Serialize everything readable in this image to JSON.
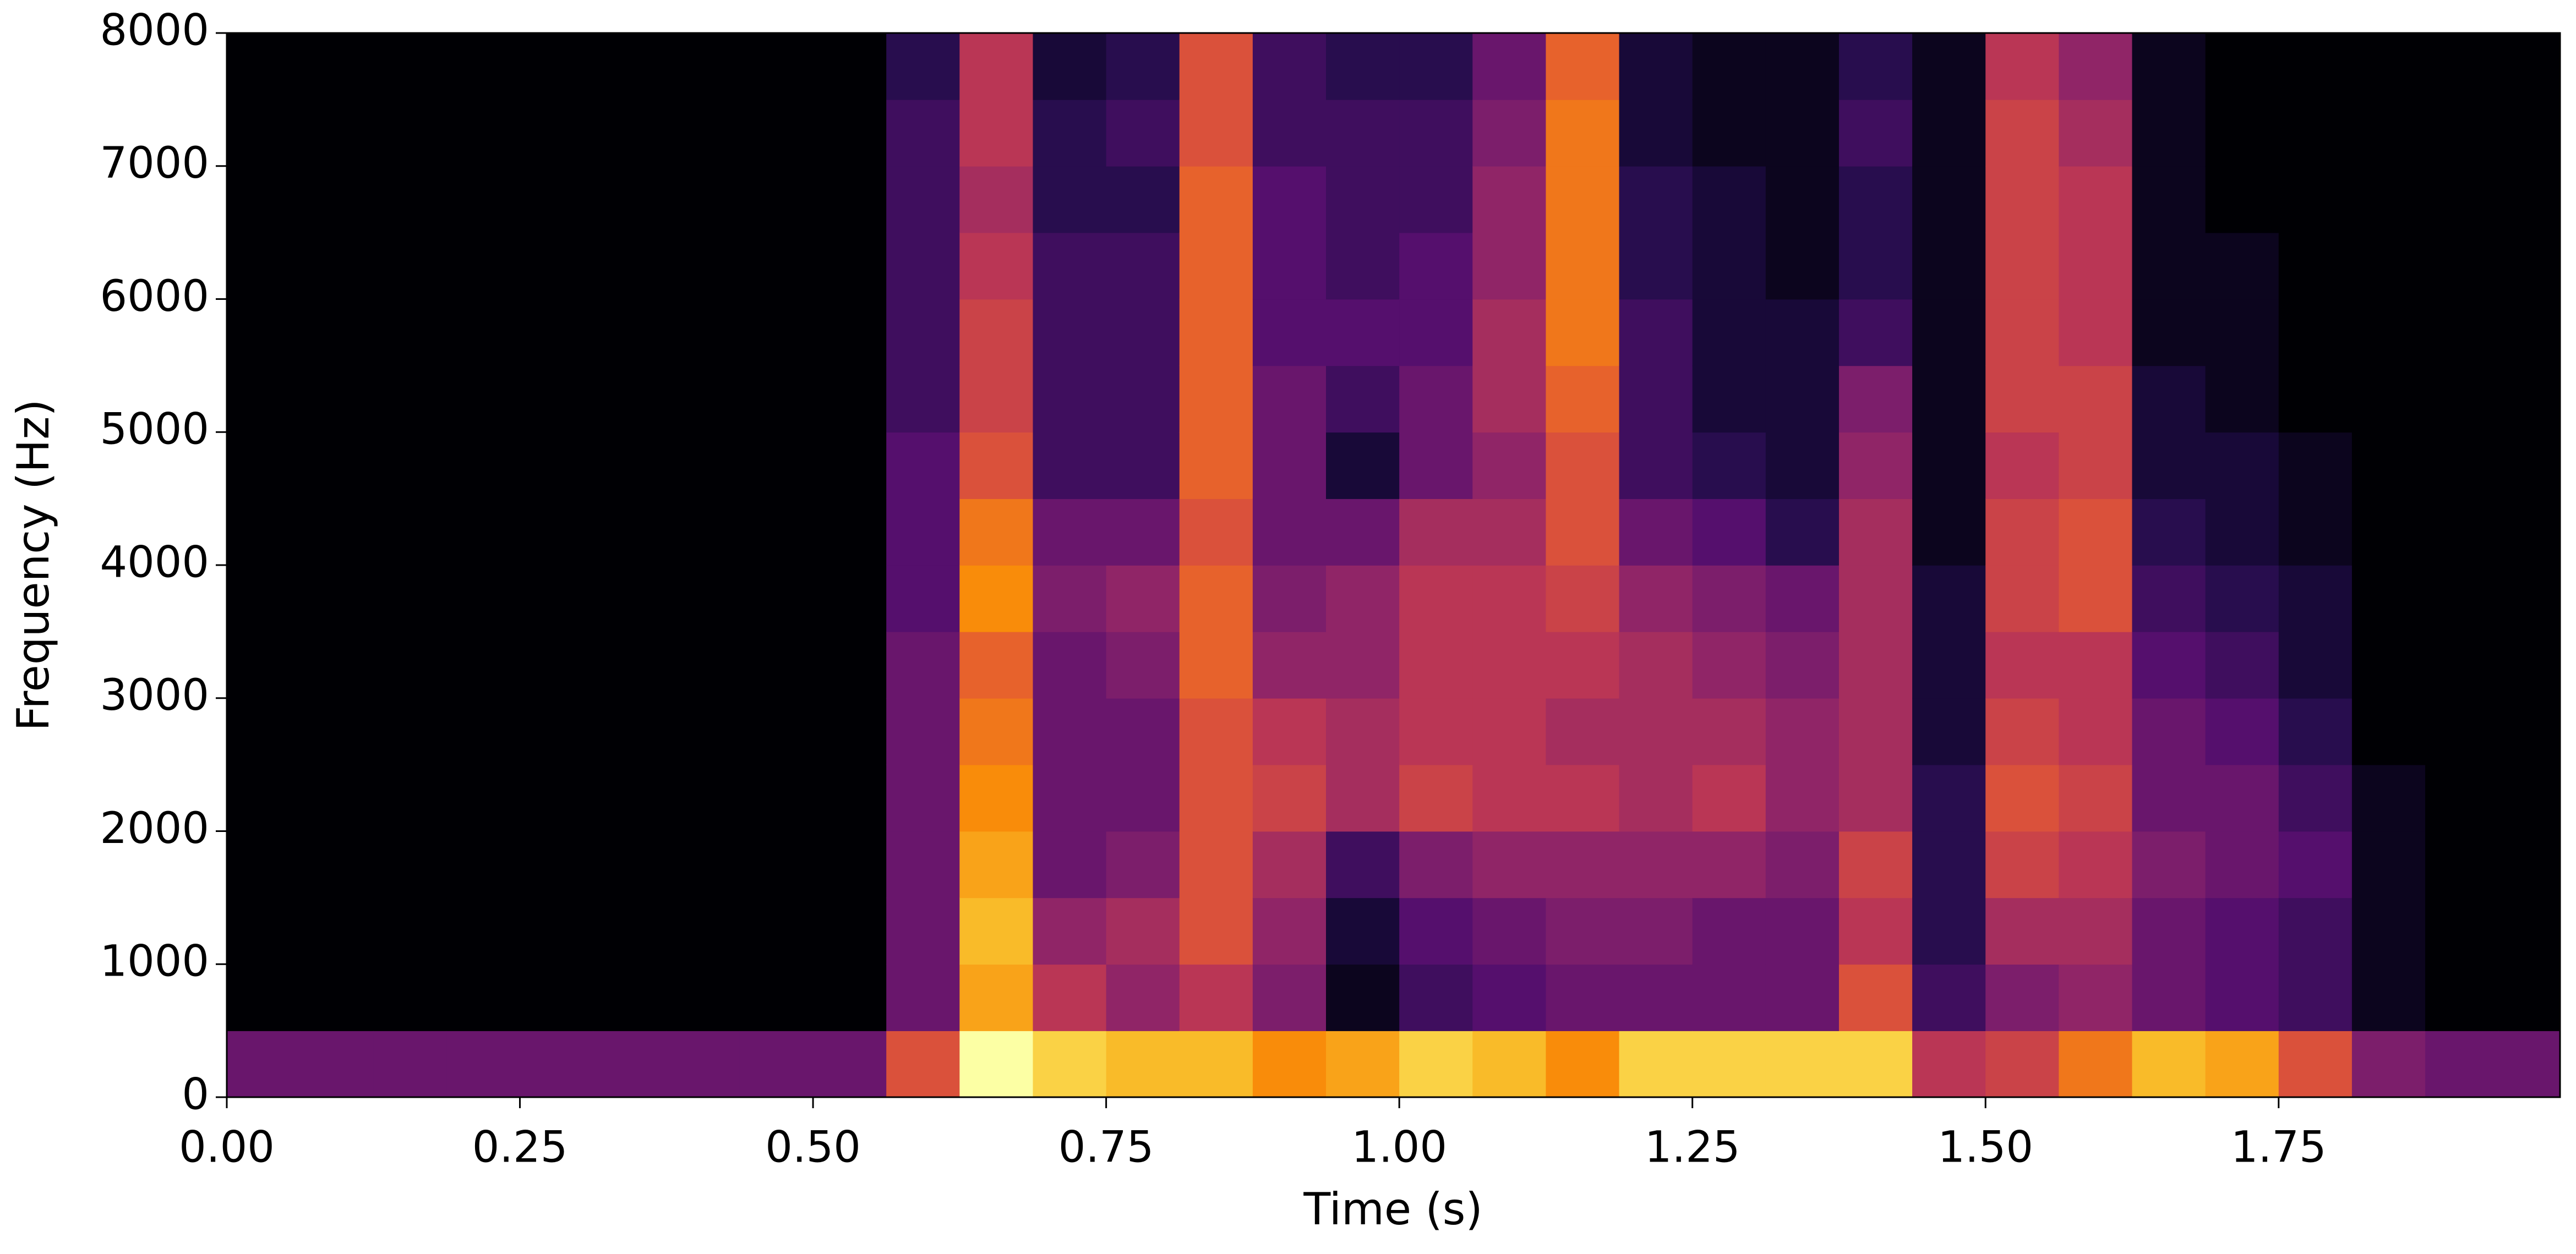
{
  "chart_data": {
    "type": "heatmap",
    "colormap": "inferno",
    "xlabel": "Time (s)",
    "ylabel": "Frequency (Hz)",
    "xlim": [
      0,
      1.99
    ],
    "ylim": [
      0,
      8000
    ],
    "xticks": [
      {
        "value": 0,
        "label": "0.00"
      },
      0.25,
      {
        "value": 0.5,
        "label": "0.50"
      },
      0.75,
      {
        "value": 1,
        "label": "1.00"
      },
      1.25,
      {
        "value": 1.5,
        "label": "1.50"
      },
      1.75
    ],
    "yticks": [
      0,
      1000,
      2000,
      3000,
      4000,
      5000,
      6000,
      7000,
      8000
    ],
    "x": [
      0,
      0.0625,
      0.125,
      0.1875,
      0.25,
      0.3125,
      0.375,
      0.4375,
      0.5,
      0.5625,
      0.625,
      0.6875,
      0.75,
      0.8125,
      0.875,
      0.9375,
      1.0,
      1.0625,
      1.125,
      1.1875,
      1.25,
      1.3125,
      1.375,
      1.4375,
      1.5,
      1.5625,
      1.625,
      1.6875,
      1.75,
      1.8125,
      1.875,
      1.9375,
      2.0
    ],
    "y": [
      0,
      500,
      1000,
      1500,
      2000,
      2500,
      3000,
      3500,
      4000,
      4500,
      5000,
      5500,
      6000,
      6500,
      7000,
      7500,
      8000
    ],
    "values": [
      [
        0.3,
        0,
        0,
        0,
        0,
        0,
        0,
        0,
        0,
        0,
        0,
        0,
        0,
        0,
        0,
        0
      ],
      [
        0.3,
        0,
        0,
        0,
        0,
        0,
        0,
        0,
        0,
        0,
        0,
        0,
        0,
        0,
        0,
        0
      ],
      [
        0.3,
        0,
        0,
        0,
        0,
        0,
        0,
        0,
        0,
        0,
        0,
        0,
        0,
        0,
        0,
        0
      ],
      [
        0.3,
        0,
        0,
        0,
        0,
        0,
        0,
        0,
        0,
        0,
        0,
        0,
        0,
        0,
        0,
        0
      ],
      [
        0.3,
        0,
        0,
        0,
        0,
        0,
        0,
        0,
        0,
        0,
        0,
        0,
        0,
        0,
        0,
        0
      ],
      [
        0.3,
        0,
        0,
        0,
        0,
        0,
        0,
        0,
        0,
        0,
        0,
        0,
        0,
        0,
        0,
        0
      ],
      [
        0.3,
        0,
        0,
        0,
        0,
        0,
        0,
        0,
        0,
        0,
        0,
        0,
        0,
        0,
        0,
        0
      ],
      [
        0.3,
        0,
        0,
        0,
        0,
        0,
        0,
        0,
        0,
        0,
        0,
        0,
        0,
        0,
        0,
        0
      ],
      [
        0.3,
        0,
        0,
        0,
        0,
        0,
        0,
        0,
        0,
        0,
        0,
        0,
        0,
        0,
        0,
        0
      ],
      [
        0.6,
        0.3,
        0.3,
        0.3,
        0.3,
        0.3,
        0.3,
        0.25,
        0.25,
        0.25,
        0.2,
        0.2,
        0.2,
        0.2,
        0.2,
        0.15
      ],
      [
        1.0,
        0.8,
        0.85,
        0.8,
        0.75,
        0.7,
        0.65,
        0.75,
        0.7,
        0.6,
        0.55,
        0.55,
        0.5,
        0.45,
        0.5,
        0.5
      ],
      [
        0.9,
        0.5,
        0.4,
        0.3,
        0.3,
        0.3,
        0.3,
        0.35,
        0.3,
        0.2,
        0.2,
        0.2,
        0.2,
        0.15,
        0.15,
        0.1
      ],
      [
        0.85,
        0.4,
        0.45,
        0.35,
        0.3,
        0.3,
        0.35,
        0.4,
        0.3,
        0.2,
        0.2,
        0.2,
        0.2,
        0.15,
        0.2,
        0.15
      ],
      [
        0.85,
        0.5,
        0.6,
        0.6,
        0.6,
        0.6,
        0.65,
        0.65,
        0.6,
        0.65,
        0.65,
        0.65,
        0.65,
        0.65,
        0.6,
        0.6
      ],
      [
        0.75,
        0.35,
        0.4,
        0.45,
        0.55,
        0.5,
        0.4,
        0.35,
        0.3,
        0.3,
        0.3,
        0.25,
        0.25,
        0.25,
        0.2,
        0.2
      ],
      [
        0.8,
        0.05,
        0.1,
        0.2,
        0.45,
        0.45,
        0.4,
        0.4,
        0.3,
        0.1,
        0.2,
        0.25,
        0.2,
        0.2,
        0.2,
        0.15
      ],
      [
        0.9,
        0.2,
        0.25,
        0.35,
        0.55,
        0.5,
        0.5,
        0.5,
        0.45,
        0.3,
        0.3,
        0.25,
        0.25,
        0.2,
        0.2,
        0.15
      ],
      [
        0.85,
        0.25,
        0.3,
        0.4,
        0.5,
        0.5,
        0.5,
        0.5,
        0.45,
        0.4,
        0.45,
        0.45,
        0.4,
        0.4,
        0.35,
        0.3
      ],
      [
        0.75,
        0.3,
        0.35,
        0.4,
        0.5,
        0.45,
        0.5,
        0.55,
        0.6,
        0.6,
        0.65,
        0.7,
        0.7,
        0.7,
        0.7,
        0.65
      ],
      [
        0.9,
        0.3,
        0.35,
        0.4,
        0.45,
        0.45,
        0.45,
        0.4,
        0.3,
        0.2,
        0.2,
        0.2,
        0.15,
        0.15,
        0.1,
        0.1
      ],
      [
        0.9,
        0.3,
        0.3,
        0.4,
        0.5,
        0.45,
        0.4,
        0.35,
        0.25,
        0.15,
        0.1,
        0.1,
        0.1,
        0.1,
        0.05,
        0.05
      ],
      [
        0.9,
        0.3,
        0.3,
        0.35,
        0.4,
        0.4,
        0.35,
        0.3,
        0.15,
        0.1,
        0.1,
        0.1,
        0.05,
        0.05,
        0.05,
        0.05
      ],
      [
        0.9,
        0.6,
        0.5,
        0.55,
        0.45,
        0.45,
        0.45,
        0.45,
        0.45,
        0.4,
        0.35,
        0.2,
        0.15,
        0.15,
        0.2,
        0.15
      ],
      [
        0.5,
        0.2,
        0.15,
        0.15,
        0.15,
        0.1,
        0.1,
        0.1,
        0.05,
        0.05,
        0.05,
        0.05,
        0.05,
        0.05,
        0.05,
        0.05
      ],
      [
        0.55,
        0.35,
        0.45,
        0.55,
        0.6,
        0.55,
        0.5,
        0.55,
        0.55,
        0.5,
        0.55,
        0.55,
        0.55,
        0.55,
        0.55,
        0.5
      ],
      [
        0.7,
        0.4,
        0.45,
        0.5,
        0.55,
        0.5,
        0.5,
        0.6,
        0.6,
        0.55,
        0.55,
        0.5,
        0.5,
        0.5,
        0.45,
        0.4
      ],
      [
        0.85,
        0.3,
        0.3,
        0.35,
        0.3,
        0.3,
        0.25,
        0.2,
        0.15,
        0.1,
        0.1,
        0.05,
        0.05,
        0.05,
        0.05,
        0.05
      ],
      [
        0.8,
        0.25,
        0.25,
        0.3,
        0.3,
        0.25,
        0.2,
        0.15,
        0.1,
        0.1,
        0.05,
        0.05,
        0.05,
        0,
        0,
        0
      ],
      [
        0.6,
        0.2,
        0.2,
        0.25,
        0.2,
        0.15,
        0.1,
        0.1,
        0.05,
        0.05,
        0,
        0,
        0,
        0,
        0,
        0
      ],
      [
        0.35,
        0.05,
        0.05,
        0.05,
        0.05,
        0,
        0,
        0,
        0,
        0,
        0,
        0,
        0,
        0,
        0,
        0
      ],
      [
        0.3,
        0,
        0,
        0,
        0,
        0,
        0,
        0,
        0,
        0,
        0,
        0,
        0,
        0,
        0,
        0
      ],
      [
        0.3,
        0,
        0,
        0,
        0,
        0,
        0,
        0,
        0,
        0,
        0,
        0,
        0,
        0,
        0,
        0
      ]
    ]
  }
}
